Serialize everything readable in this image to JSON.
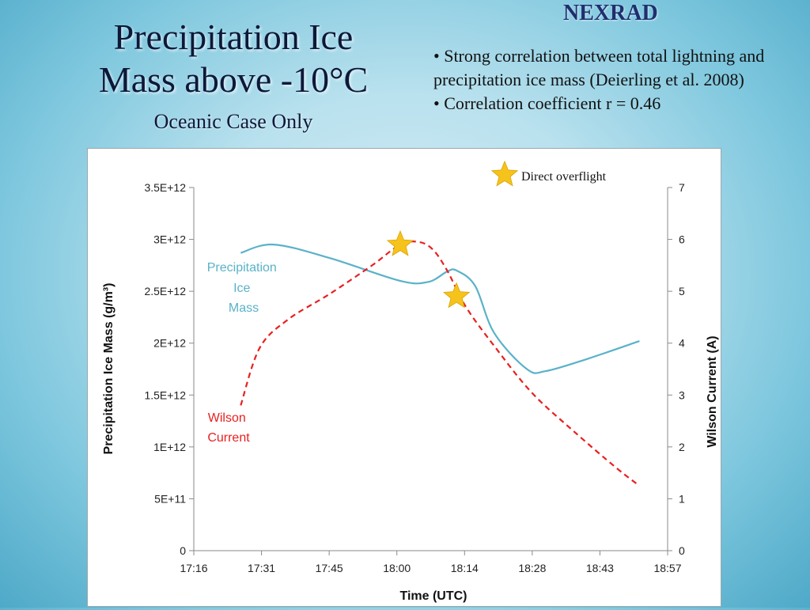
{
  "slide": {
    "title_line1": "Precipitation Ice",
    "title_line2": "Mass above -10°C",
    "subtitle": "Oceanic Case Only",
    "source_label": "NEXRAD",
    "bullets": [
      "• Strong correlation between total lightning and precipitation ice mass (Deierling et al. 2008)",
      "• Correlation coefficient r = 0.46"
    ]
  },
  "colors": {
    "ice_mass": "#5ab2c8",
    "wilson_current": "#e82020",
    "star": "#f6c21c",
    "axis": "#8a8a8a",
    "gridline": "#d9d9d9"
  },
  "chart_data": {
    "type": "line",
    "xlabel": "Time (UTC)",
    "ylabel": "Precipitation Ice Mass  (g/m³)",
    "y2label": "Wilson Current (A)",
    "x_ticks": [
      "17:16",
      "17:31",
      "17:45",
      "18:00",
      "18:14",
      "18:28",
      "18:43",
      "18:57"
    ],
    "y_ticks": [
      "0",
      "5E+11",
      "1E+12",
      "1.5E+12",
      "2E+12",
      "2.5E+12",
      "3E+12",
      "3.5E+12"
    ],
    "y2_ticks": [
      "0",
      "1",
      "2",
      "3",
      "4",
      "5",
      "6",
      "7"
    ],
    "ylim": [
      0,
      3500000000000
    ],
    "y2lim": [
      0,
      7
    ],
    "grid": false,
    "legend": "inline labels",
    "annotation": "Direct overflight",
    "series": [
      {
        "name": "Precipitation Ice Mass",
        "label_lines": [
          "Precipitation",
          "Ice",
          "Mass"
        ],
        "axis": "left",
        "style": "solid",
        "x": [
          "17:26",
          "17:33",
          "17:45",
          "18:00",
          "18:06",
          "18:10",
          "18:12",
          "18:16",
          "18:20",
          "18:27",
          "18:31",
          "18:40",
          "18:51"
        ],
        "y": [
          2870000000000,
          2950000000000,
          2820000000000,
          2600000000000,
          2590000000000,
          2690000000000,
          2700000000000,
          2550000000000,
          2100000000000,
          1750000000000,
          1730000000000,
          1850000000000,
          2020000000000
        ]
      },
      {
        "name": "Wilson Current",
        "label_lines": [
          "Wilson",
          "Current"
        ],
        "axis": "right",
        "style": "dashed",
        "x": [
          "17:26",
          "17:30",
          "17:36",
          "17:45",
          "17:54",
          "18:00",
          "18:04",
          "18:07",
          "18:10",
          "18:14",
          "18:20",
          "18:28",
          "18:37",
          "18:46",
          "18:51"
        ],
        "y": [
          2.8,
          3.9,
          4.45,
          4.95,
          5.5,
          5.9,
          5.95,
          5.8,
          5.4,
          4.7,
          3.95,
          3.05,
          2.3,
          1.6,
          1.25
        ]
      }
    ],
    "overflight_stars": [
      {
        "x": "18:00",
        "y2": 5.9
      },
      {
        "x": "18:12",
        "y2": 4.9
      }
    ]
  }
}
